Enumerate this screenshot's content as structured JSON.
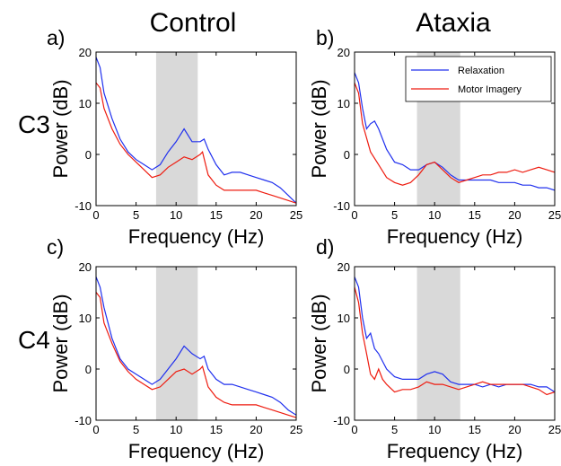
{
  "figure": {
    "column_titles": [
      "Control",
      "Ataxia"
    ],
    "row_labels": [
      "C3",
      "C4"
    ],
    "panel_letters": [
      "a)",
      "b)",
      "c)",
      "d)"
    ],
    "xlabel": "Frequency (Hz)",
    "ylabel": "Power (dB)",
    "legend": [
      "Relaxation",
      "Motor Imagery"
    ],
    "colors": {
      "Relaxation": "#2030ee",
      "Motor Imagery": "#ee1c10",
      "band": "#d9d9d9"
    }
  },
  "chart_data": [
    {
      "type": "line",
      "panel": "a)",
      "xlim": [
        0,
        25
      ],
      "ylim": [
        -10,
        20
      ],
      "xticks": [
        0,
        5,
        10,
        15,
        20,
        25
      ],
      "yticks": [
        -10,
        0,
        10,
        20
      ],
      "shaded_band": [
        7.5,
        12.7
      ],
      "series": [
        {
          "name": "Relaxation",
          "points": [
            [
              0,
              19
            ],
            [
              0.5,
              17
            ],
            [
              1,
              12
            ],
            [
              2,
              7
            ],
            [
              3,
              3
            ],
            [
              4,
              0.5
            ],
            [
              5,
              -1
            ],
            [
              6,
              -2
            ],
            [
              7,
              -3
            ],
            [
              8,
              -2
            ],
            [
              9,
              0.5
            ],
            [
              10,
              2.5
            ],
            [
              11,
              5
            ],
            [
              12,
              2.5
            ],
            [
              13,
              2.5
            ],
            [
              13.5,
              3
            ],
            [
              14,
              1
            ],
            [
              15,
              -2
            ],
            [
              16,
              -4
            ],
            [
              17,
              -3.5
            ],
            [
              18,
              -3.5
            ],
            [
              19,
              -4
            ],
            [
              20,
              -4.5
            ],
            [
              21,
              -5
            ],
            [
              22,
              -5.5
            ],
            [
              23,
              -6.5
            ],
            [
              24,
              -8
            ],
            [
              25,
              -9.5
            ]
          ]
        },
        {
          "name": "Motor Imagery",
          "points": [
            [
              0,
              14
            ],
            [
              0.5,
              13
            ],
            [
              1,
              9
            ],
            [
              2,
              5
            ],
            [
              3,
              2
            ],
            [
              4,
              0
            ],
            [
              5,
              -1.5
            ],
            [
              6,
              -3
            ],
            [
              7,
              -4.5
            ],
            [
              8,
              -4
            ],
            [
              9,
              -2.5
            ],
            [
              10,
              -1.5
            ],
            [
              11,
              -0.5
            ],
            [
              12,
              -1
            ],
            [
              13,
              0
            ],
            [
              13.3,
              0.5
            ],
            [
              14,
              -4
            ],
            [
              15,
              -6
            ],
            [
              16,
              -7
            ],
            [
              17,
              -7
            ],
            [
              18,
              -7
            ],
            [
              19,
              -7
            ],
            [
              20,
              -7
            ],
            [
              21,
              -7.5
            ],
            [
              22,
              -8
            ],
            [
              23,
              -8.5
            ],
            [
              24,
              -9
            ],
            [
              25,
              -9.5
            ]
          ]
        }
      ]
    },
    {
      "type": "line",
      "panel": "b)",
      "xlim": [
        0,
        25
      ],
      "ylim": [
        -10,
        20
      ],
      "xticks": [
        0,
        5,
        10,
        15,
        20,
        25
      ],
      "yticks": [
        -10,
        0,
        10,
        20
      ],
      "shaded_band": [
        7.8,
        13.2
      ],
      "series": [
        {
          "name": "Relaxation",
          "points": [
            [
              0,
              16
            ],
            [
              0.5,
              14
            ],
            [
              1,
              9
            ],
            [
              1.5,
              5
            ],
            [
              2,
              6
            ],
            [
              2.5,
              6.5
            ],
            [
              3,
              5
            ],
            [
              4,
              1
            ],
            [
              5,
              -1.5
            ],
            [
              6,
              -2
            ],
            [
              7,
              -3
            ],
            [
              8,
              -3
            ],
            [
              9,
              -2
            ],
            [
              10,
              -1.5
            ],
            [
              11,
              -2.5
            ],
            [
              12,
              -4
            ],
            [
              13,
              -5
            ],
            [
              14,
              -5
            ],
            [
              15,
              -5
            ],
            [
              16,
              -5
            ],
            [
              17,
              -5
            ],
            [
              18,
              -5.5
            ],
            [
              19,
              -5.5
            ],
            [
              20,
              -5.5
            ],
            [
              21,
              -6
            ],
            [
              22,
              -6
            ],
            [
              23,
              -6.5
            ],
            [
              24,
              -6.5
            ],
            [
              25,
              -7
            ]
          ]
        },
        {
          "name": "Motor Imagery",
          "points": [
            [
              0,
              14
            ],
            [
              0.5,
              12
            ],
            [
              1,
              6
            ],
            [
              2,
              0.5
            ],
            [
              3,
              -2
            ],
            [
              4,
              -4.5
            ],
            [
              5,
              -5.5
            ],
            [
              6,
              -6
            ],
            [
              7,
              -5.5
            ],
            [
              8,
              -4
            ],
            [
              9,
              -2
            ],
            [
              10,
              -1.5
            ],
            [
              11,
              -3
            ],
            [
              12,
              -4.5
            ],
            [
              13,
              -5.5
            ],
            [
              14,
              -5
            ],
            [
              15,
              -4.5
            ],
            [
              16,
              -4
            ],
            [
              17,
              -4
            ],
            [
              18,
              -3.5
            ],
            [
              19,
              -3.5
            ],
            [
              20,
              -3
            ],
            [
              21,
              -3.5
            ],
            [
              22,
              -3
            ],
            [
              23,
              -2.5
            ],
            [
              24,
              -3
            ],
            [
              25,
              -3.5
            ]
          ]
        }
      ]
    },
    {
      "type": "line",
      "panel": "c)",
      "xlim": [
        0,
        25
      ],
      "ylim": [
        -10,
        20
      ],
      "xticks": [
        0,
        5,
        10,
        15,
        20,
        25
      ],
      "yticks": [
        -10,
        0,
        10,
        20
      ],
      "shaded_band": [
        7.5,
        12.7
      ],
      "series": [
        {
          "name": "Relaxation",
          "points": [
            [
              0,
              18
            ],
            [
              0.5,
              16
            ],
            [
              1,
              12
            ],
            [
              2,
              6
            ],
            [
              3,
              2
            ],
            [
              4,
              0
            ],
            [
              5,
              -1
            ],
            [
              6,
              -2
            ],
            [
              7,
              -3
            ],
            [
              8,
              -2
            ],
            [
              9,
              0
            ],
            [
              10,
              2
            ],
            [
              11,
              4.5
            ],
            [
              12,
              3
            ],
            [
              13,
              2
            ],
            [
              13.5,
              2.5
            ],
            [
              14,
              0
            ],
            [
              15,
              -2
            ],
            [
              16,
              -3
            ],
            [
              17,
              -3
            ],
            [
              18,
              -3.5
            ],
            [
              19,
              -4
            ],
            [
              20,
              -4.5
            ],
            [
              21,
              -5
            ],
            [
              22,
              -5.5
            ],
            [
              23,
              -6.5
            ],
            [
              24,
              -8
            ],
            [
              25,
              -9
            ]
          ]
        },
        {
          "name": "Motor Imagery",
          "points": [
            [
              0,
              15
            ],
            [
              0.5,
              14
            ],
            [
              1,
              9
            ],
            [
              2,
              5
            ],
            [
              3,
              1.5
            ],
            [
              4,
              -0.5
            ],
            [
              5,
              -2
            ],
            [
              6,
              -3
            ],
            [
              7,
              -4
            ],
            [
              8,
              -3.5
            ],
            [
              9,
              -2
            ],
            [
              10,
              -0.5
            ],
            [
              11,
              0
            ],
            [
              12,
              -1
            ],
            [
              13,
              0
            ],
            [
              13.3,
              0.5
            ],
            [
              14,
              -3.5
            ],
            [
              15,
              -5.5
            ],
            [
              16,
              -6.5
            ],
            [
              17,
              -7
            ],
            [
              18,
              -7
            ],
            [
              19,
              -7
            ],
            [
              20,
              -7
            ],
            [
              21,
              -7.5
            ],
            [
              22,
              -8
            ],
            [
              23,
              -8.5
            ],
            [
              24,
              -9
            ],
            [
              25,
              -9.5
            ]
          ]
        }
      ]
    },
    {
      "type": "line",
      "panel": "d)",
      "xlim": [
        0,
        25
      ],
      "ylim": [
        -10,
        20
      ],
      "xticks": [
        0,
        5,
        10,
        15,
        20,
        25
      ],
      "yticks": [
        -10,
        0,
        10,
        20
      ],
      "shaded_band": [
        7.8,
        13.2
      ],
      "series": [
        {
          "name": "Relaxation",
          "points": [
            [
              0,
              18
            ],
            [
              0.5,
              16
            ],
            [
              1,
              10
            ],
            [
              1.5,
              6
            ],
            [
              2,
              7
            ],
            [
              2.5,
              4
            ],
            [
              3,
              3
            ],
            [
              4,
              0
            ],
            [
              5,
              -1.5
            ],
            [
              6,
              -2
            ],
            [
              7,
              -2
            ],
            [
              8,
              -2
            ],
            [
              9,
              -1
            ],
            [
              10,
              -0.5
            ],
            [
              11,
              -1
            ],
            [
              12,
              -2.5
            ],
            [
              13,
              -3
            ],
            [
              14,
              -3
            ],
            [
              15,
              -3
            ],
            [
              16,
              -3.5
            ],
            [
              17,
              -3
            ],
            [
              18,
              -3.5
            ],
            [
              19,
              -3
            ],
            [
              20,
              -3
            ],
            [
              21,
              -3
            ],
            [
              22,
              -3
            ],
            [
              23,
              -3.5
            ],
            [
              24,
              -3.5
            ],
            [
              25,
              -4.5
            ]
          ]
        },
        {
          "name": "Motor Imagery",
          "points": [
            [
              0,
              16
            ],
            [
              0.5,
              13
            ],
            [
              1,
              7
            ],
            [
              1.5,
              3
            ],
            [
              2,
              -1
            ],
            [
              2.5,
              -2
            ],
            [
              3,
              0
            ],
            [
              3.5,
              -2
            ],
            [
              4,
              -3
            ],
            [
              5,
              -4.5
            ],
            [
              6,
              -4
            ],
            [
              7,
              -4
            ],
            [
              8,
              -3.5
            ],
            [
              9,
              -2.5
            ],
            [
              10,
              -3
            ],
            [
              11,
              -3
            ],
            [
              12,
              -3.5
            ],
            [
              13,
              -4
            ],
            [
              14,
              -3.5
            ],
            [
              15,
              -3
            ],
            [
              16,
              -2.5
            ],
            [
              17,
              -3
            ],
            [
              18,
              -3
            ],
            [
              19,
              -3
            ],
            [
              20,
              -3
            ],
            [
              21,
              -3
            ],
            [
              22,
              -3.5
            ],
            [
              23,
              -4
            ],
            [
              24,
              -5
            ],
            [
              25,
              -4.5
            ]
          ]
        }
      ]
    }
  ]
}
